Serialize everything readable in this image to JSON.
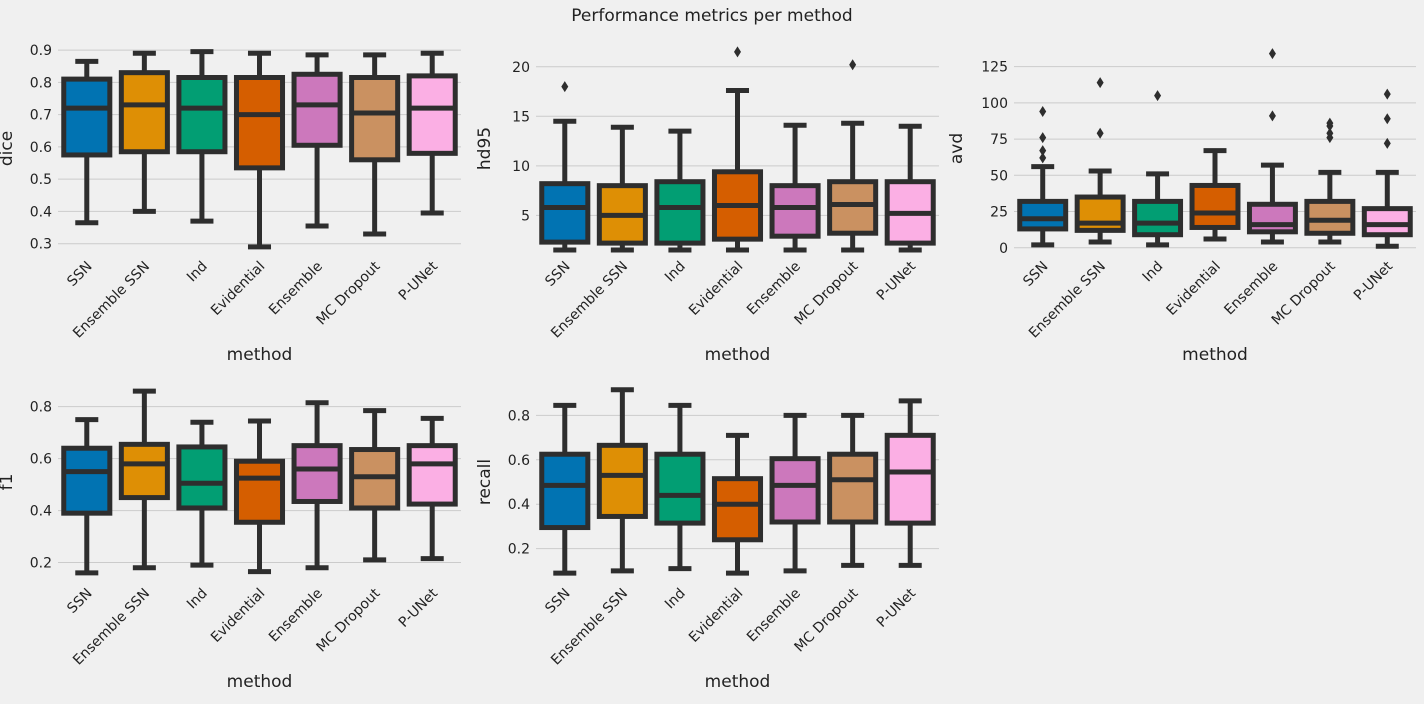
{
  "title": "Performance metrics per method",
  "colors": {
    "background": "#f0f0f0",
    "grid": "#cbcbcb",
    "edge": "#2e2e2e",
    "methods": [
      "#0173b2",
      "#de8f05",
      "#029e73",
      "#d55e00",
      "#cc78bc",
      "#ca9161",
      "#fbafe4"
    ]
  },
  "chart_data": [
    {
      "type": "box",
      "title": "",
      "xlabel": "method",
      "ylabel": "dice",
      "categories": [
        "SSN",
        "Ensemble SSN",
        "Ind",
        "Evidential",
        "Ensemble",
        "MC Dropout",
        "P-UNet"
      ],
      "ylim": [
        0.265,
        0.925
      ],
      "yticks": [
        0.3,
        0.4,
        0.5,
        0.6,
        0.7,
        0.8,
        0.9
      ],
      "yticklabels": [
        "0.3",
        "0.4",
        "0.5",
        "0.6",
        "0.7",
        "0.8",
        "0.9"
      ],
      "boxes": [
        {
          "name": "SSN",
          "whislo": 0.365,
          "q1": 0.575,
          "med": 0.72,
          "q3": 0.81,
          "whishi": 0.865,
          "fliers": []
        },
        {
          "name": "Ensemble SSN",
          "whislo": 0.4,
          "q1": 0.585,
          "med": 0.73,
          "q3": 0.83,
          "whishi": 0.89,
          "fliers": []
        },
        {
          "name": "Ind",
          "whislo": 0.37,
          "q1": 0.585,
          "med": 0.72,
          "q3": 0.815,
          "whishi": 0.895,
          "fliers": []
        },
        {
          "name": "Evidential",
          "whislo": 0.29,
          "q1": 0.535,
          "med": 0.7,
          "q3": 0.815,
          "whishi": 0.89,
          "fliers": []
        },
        {
          "name": "Ensemble",
          "whislo": 0.355,
          "q1": 0.605,
          "med": 0.73,
          "q3": 0.825,
          "whishi": 0.885,
          "fliers": []
        },
        {
          "name": "MC Dropout",
          "whislo": 0.33,
          "q1": 0.56,
          "med": 0.705,
          "q3": 0.815,
          "whishi": 0.885,
          "fliers": []
        },
        {
          "name": "P-UNet",
          "whislo": 0.395,
          "q1": 0.58,
          "med": 0.72,
          "q3": 0.82,
          "whishi": 0.89,
          "fliers": []
        }
      ]
    },
    {
      "type": "box",
      "title": "",
      "xlabel": "method",
      "ylabel": "hd95",
      "categories": [
        "SSN",
        "Ensemble SSN",
        "Ind",
        "Evidential",
        "Ensemble",
        "MC Dropout",
        "P-UNet"
      ],
      "ylim": [
        1.0,
        22.5
      ],
      "yticks": [
        5,
        10,
        15,
        20
      ],
      "yticklabels": [
        "5",
        "10",
        "15",
        "20"
      ],
      "boxes": [
        {
          "name": "SSN",
          "whislo": 1.5,
          "q1": 2.3,
          "med": 5.8,
          "q3": 8.2,
          "whishi": 14.5,
          "fliers": [
            18.0
          ]
        },
        {
          "name": "Ensemble SSN",
          "whislo": 1.5,
          "q1": 2.2,
          "med": 5.0,
          "q3": 8.0,
          "whishi": 13.9,
          "fliers": []
        },
        {
          "name": "Ind",
          "whislo": 1.5,
          "q1": 2.2,
          "med": 5.8,
          "q3": 8.4,
          "whishi": 13.5,
          "fliers": []
        },
        {
          "name": "Evidential",
          "whislo": 1.5,
          "q1": 2.6,
          "med": 6.0,
          "q3": 9.4,
          "whishi": 17.6,
          "fliers": [
            21.5
          ]
        },
        {
          "name": "Ensemble",
          "whislo": 1.5,
          "q1": 2.9,
          "med": 5.8,
          "q3": 8.0,
          "whishi": 14.1,
          "fliers": []
        },
        {
          "name": "MC Dropout",
          "whislo": 1.5,
          "q1": 3.2,
          "med": 6.1,
          "q3": 8.4,
          "whishi": 14.3,
          "fliers": [
            20.2
          ]
        },
        {
          "name": "P-UNet",
          "whislo": 1.5,
          "q1": 2.2,
          "med": 5.2,
          "q3": 8.4,
          "whishi": 14.0,
          "fliers": []
        }
      ]
    },
    {
      "type": "box",
      "title": "",
      "xlabel": "method",
      "ylabel": "avd",
      "categories": [
        "SSN",
        "Ensemble SSN",
        "Ind",
        "Evidential",
        "Ensemble",
        "MC Dropout",
        "P-UNet"
      ],
      "ylim": [
        -5,
        142
      ],
      "yticks": [
        0,
        25,
        50,
        75,
        100,
        125
      ],
      "yticklabels": [
        "0",
        "25",
        "50",
        "75",
        "100",
        "125"
      ],
      "boxes": [
        {
          "name": "SSN",
          "whislo": 2,
          "q1": 13,
          "med": 20,
          "q3": 32,
          "whishi": 56,
          "fliers": [
            62,
            67,
            76,
            94
          ]
        },
        {
          "name": "Ensemble SSN",
          "whislo": 4,
          "q1": 12,
          "med": 17,
          "q3": 35,
          "whishi": 53,
          "fliers": [
            79,
            114
          ]
        },
        {
          "name": "Ind",
          "whislo": 2,
          "q1": 9,
          "med": 17,
          "q3": 32,
          "whishi": 51,
          "fliers": [
            105
          ]
        },
        {
          "name": "Evidential",
          "whislo": 6,
          "q1": 14,
          "med": 24,
          "q3": 43,
          "whishi": 67,
          "fliers": []
        },
        {
          "name": "Ensemble",
          "whislo": 4,
          "q1": 11,
          "med": 16,
          "q3": 30,
          "whishi": 57,
          "fliers": [
            91,
            134
          ]
        },
        {
          "name": "MC Dropout",
          "whislo": 4,
          "q1": 10,
          "med": 19,
          "q3": 32,
          "whishi": 52,
          "fliers": [
            76,
            79,
            84,
            86
          ]
        },
        {
          "name": "P-UNet",
          "whislo": 1,
          "q1": 9,
          "med": 16,
          "q3": 27,
          "whishi": 52,
          "fliers": [
            72,
            89,
            106
          ]
        }
      ]
    },
    {
      "type": "box",
      "title": "",
      "xlabel": "method",
      "ylabel": "f1",
      "categories": [
        "SSN",
        "Ensemble SSN",
        "Ind",
        "Evidential",
        "Ensemble",
        "MC Dropout",
        "P-UNet"
      ],
      "ylim": [
        0.125,
        0.895
      ],
      "yticks": [
        0.2,
        0.4,
        0.6,
        0.8
      ],
      "yticklabels": [
        "0.2",
        "0.4",
        "0.6",
        "0.8"
      ],
      "boxes": [
        {
          "name": "SSN",
          "whislo": 0.16,
          "q1": 0.39,
          "med": 0.55,
          "q3": 0.64,
          "whishi": 0.75,
          "fliers": []
        },
        {
          "name": "Ensemble SSN",
          "whislo": 0.18,
          "q1": 0.45,
          "med": 0.58,
          "q3": 0.655,
          "whishi": 0.86,
          "fliers": []
        },
        {
          "name": "Ind",
          "whislo": 0.19,
          "q1": 0.41,
          "med": 0.505,
          "q3": 0.645,
          "whishi": 0.74,
          "fliers": []
        },
        {
          "name": "Evidential",
          "whislo": 0.165,
          "q1": 0.355,
          "med": 0.525,
          "q3": 0.59,
          "whishi": 0.745,
          "fliers": []
        },
        {
          "name": "Ensemble",
          "whislo": 0.18,
          "q1": 0.435,
          "med": 0.56,
          "q3": 0.65,
          "whishi": 0.815,
          "fliers": []
        },
        {
          "name": "MC Dropout",
          "whislo": 0.21,
          "q1": 0.41,
          "med": 0.53,
          "q3": 0.635,
          "whishi": 0.785,
          "fliers": []
        },
        {
          "name": "P-UNet",
          "whislo": 0.215,
          "q1": 0.425,
          "med": 0.58,
          "q3": 0.65,
          "whishi": 0.755,
          "fliers": []
        }
      ]
    },
    {
      "type": "box",
      "title": "",
      "xlabel": "method",
      "ylabel": "recall",
      "categories": [
        "SSN",
        "Ensemble SSN",
        "Ind",
        "Evidential",
        "Ensemble",
        "MC Dropout",
        "P-UNet"
      ],
      "ylim": [
        0.05,
        0.95
      ],
      "yticks": [
        0.2,
        0.4,
        0.6,
        0.8
      ],
      "yticklabels": [
        "0.2",
        "0.4",
        "0.6",
        "0.8"
      ],
      "boxes": [
        {
          "name": "SSN",
          "whislo": 0.09,
          "q1": 0.295,
          "med": 0.485,
          "q3": 0.625,
          "whishi": 0.845,
          "fliers": []
        },
        {
          "name": "Ensemble SSN",
          "whislo": 0.1,
          "q1": 0.345,
          "med": 0.53,
          "q3": 0.665,
          "whishi": 0.915,
          "fliers": []
        },
        {
          "name": "Ind",
          "whislo": 0.11,
          "q1": 0.315,
          "med": 0.44,
          "q3": 0.625,
          "whishi": 0.845,
          "fliers": []
        },
        {
          "name": "Evidential",
          "whislo": 0.09,
          "q1": 0.24,
          "med": 0.4,
          "q3": 0.515,
          "whishi": 0.71,
          "fliers": []
        },
        {
          "name": "Ensemble",
          "whislo": 0.1,
          "q1": 0.32,
          "med": 0.485,
          "q3": 0.605,
          "whishi": 0.8,
          "fliers": []
        },
        {
          "name": "MC Dropout",
          "whislo": 0.125,
          "q1": 0.32,
          "med": 0.51,
          "q3": 0.625,
          "whishi": 0.8,
          "fliers": []
        },
        {
          "name": "P-UNet",
          "whislo": 0.125,
          "q1": 0.315,
          "med": 0.545,
          "q3": 0.71,
          "whishi": 0.865,
          "fliers": []
        }
      ]
    }
  ]
}
